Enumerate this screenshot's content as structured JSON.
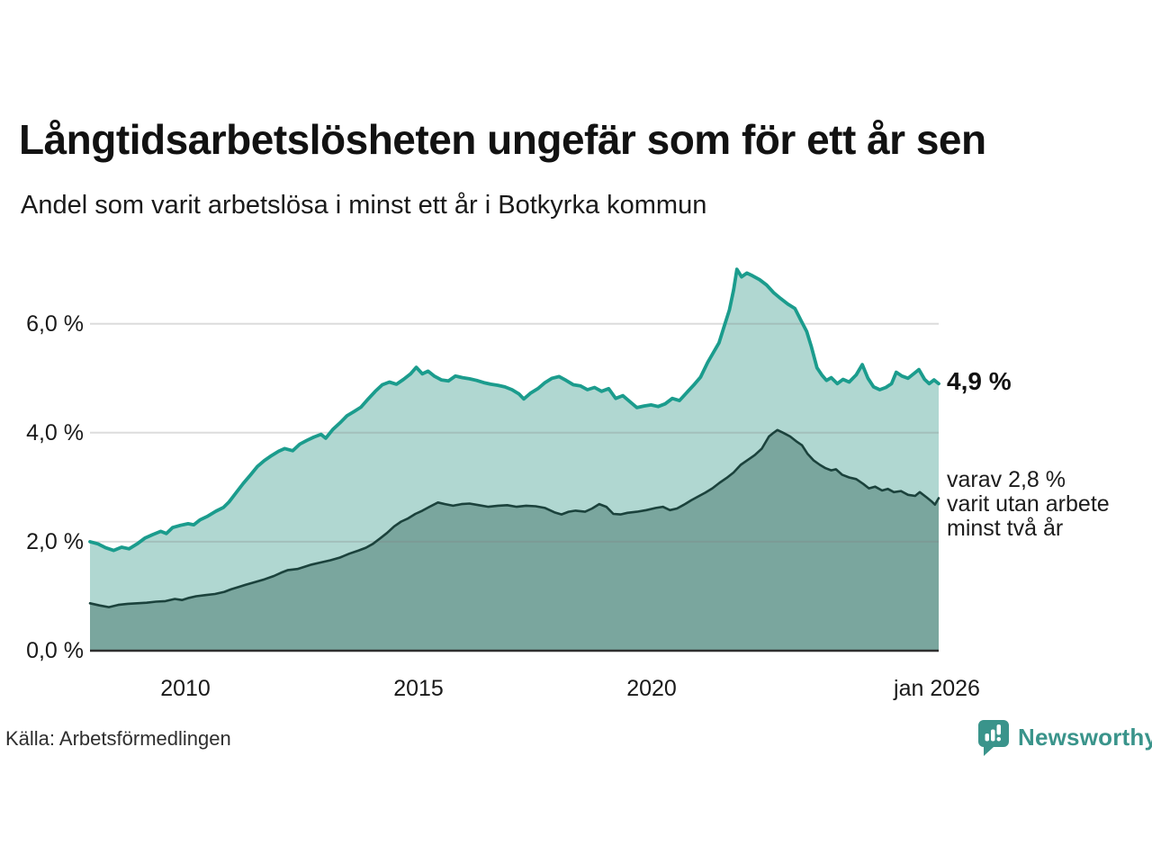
{
  "header": {
    "title": "Långtidsarbetslösheten ungefär som för ett år sen",
    "subtitle": "Andel som varit arbetslösa i minst ett år i Botkyrka kommun"
  },
  "source": {
    "label": "Källa: Arbetsförmedlingen"
  },
  "branding": {
    "name": "Newsworthy",
    "color": "#3a948b"
  },
  "chart_data": {
    "type": "area",
    "unit": "%",
    "grid": "horizontal",
    "x_domain": [
      2008.0,
      2026.0
    ],
    "ylim": [
      0,
      7.2
    ],
    "y_ticks": [
      {
        "label": "6,0 %",
        "value": 6
      },
      {
        "label": "4,0 %",
        "value": 4
      },
      {
        "label": "2,0 %",
        "value": 2
      },
      {
        "label": "0,0 %",
        "value": 0
      }
    ],
    "x_ticks": [
      {
        "label": "2010",
        "year": 2010
      },
      {
        "label": "2015",
        "year": 2015
      },
      {
        "label": "2020",
        "year": 2020
      },
      {
        "label": "jan 2026",
        "year": 2026.0
      }
    ],
    "annotations": {
      "latest_total": "4,9 %",
      "note_lines": [
        "varav 2,8 %",
        "varit utan arbete",
        "minst två år"
      ]
    },
    "colors": {
      "total_line": "#1b9c8d",
      "total_fill": "#b0d7d1",
      "two_year_line": "#1b423c",
      "two_year_fill": "#7aa69e",
      "gridline": "#dcdcdc",
      "axis": "#2f2f2f"
    },
    "series": [
      {
        "name": "arbetslösa minst ett år",
        "latest_value": 4.9,
        "points": [
          [
            2008.0,
            2.0
          ],
          [
            2008.17,
            1.96
          ],
          [
            2008.33,
            1.89
          ],
          [
            2008.5,
            1.84
          ],
          [
            2008.67,
            1.9
          ],
          [
            2008.83,
            1.87
          ],
          [
            2009.0,
            1.96
          ],
          [
            2009.17,
            2.07
          ],
          [
            2009.33,
            2.13
          ],
          [
            2009.5,
            2.19
          ],
          [
            2009.62,
            2.15
          ],
          [
            2009.75,
            2.26
          ],
          [
            2009.92,
            2.3
          ],
          [
            2010.08,
            2.33
          ],
          [
            2010.2,
            2.31
          ],
          [
            2010.33,
            2.4
          ],
          [
            2010.5,
            2.47
          ],
          [
            2010.67,
            2.56
          ],
          [
            2010.83,
            2.63
          ],
          [
            2010.95,
            2.73
          ],
          [
            2011.1,
            2.9
          ],
          [
            2011.25,
            3.07
          ],
          [
            2011.4,
            3.22
          ],
          [
            2011.55,
            3.38
          ],
          [
            2011.7,
            3.49
          ],
          [
            2011.85,
            3.58
          ],
          [
            2012.0,
            3.66
          ],
          [
            2012.13,
            3.71
          ],
          [
            2012.3,
            3.67
          ],
          [
            2012.45,
            3.79
          ],
          [
            2012.6,
            3.86
          ],
          [
            2012.75,
            3.92
          ],
          [
            2012.9,
            3.97
          ],
          [
            2013.0,
            3.9
          ],
          [
            2013.15,
            4.06
          ],
          [
            2013.3,
            4.18
          ],
          [
            2013.45,
            4.31
          ],
          [
            2013.6,
            4.39
          ],
          [
            2013.75,
            4.47
          ],
          [
            2013.9,
            4.62
          ],
          [
            2014.05,
            4.76
          ],
          [
            2014.2,
            4.88
          ],
          [
            2014.35,
            4.93
          ],
          [
            2014.5,
            4.89
          ],
          [
            2014.65,
            4.98
          ],
          [
            2014.8,
            5.08
          ],
          [
            2014.92,
            5.2
          ],
          [
            2015.05,
            5.08
          ],
          [
            2015.17,
            5.13
          ],
          [
            2015.3,
            5.04
          ],
          [
            2015.45,
            4.97
          ],
          [
            2015.6,
            4.95
          ],
          [
            2015.75,
            5.04
          ],
          [
            2015.9,
            5.01
          ],
          [
            2016.05,
            4.99
          ],
          [
            2016.2,
            4.96
          ],
          [
            2016.35,
            4.92
          ],
          [
            2016.5,
            4.89
          ],
          [
            2016.65,
            4.87
          ],
          [
            2016.8,
            4.84
          ],
          [
            2016.95,
            4.79
          ],
          [
            2017.1,
            4.71
          ],
          [
            2017.2,
            4.62
          ],
          [
            2017.35,
            4.73
          ],
          [
            2017.5,
            4.81
          ],
          [
            2017.65,
            4.92
          ],
          [
            2017.8,
            5.0
          ],
          [
            2017.95,
            5.03
          ],
          [
            2018.1,
            4.96
          ],
          [
            2018.25,
            4.88
          ],
          [
            2018.4,
            4.86
          ],
          [
            2018.55,
            4.79
          ],
          [
            2018.7,
            4.83
          ],
          [
            2018.85,
            4.76
          ],
          [
            2019.0,
            4.81
          ],
          [
            2019.15,
            4.63
          ],
          [
            2019.3,
            4.68
          ],
          [
            2019.45,
            4.57
          ],
          [
            2019.6,
            4.46
          ],
          [
            2019.75,
            4.49
          ],
          [
            2019.9,
            4.51
          ],
          [
            2020.05,
            4.48
          ],
          [
            2020.2,
            4.53
          ],
          [
            2020.35,
            4.63
          ],
          [
            2020.5,
            4.59
          ],
          [
            2020.65,
            4.73
          ],
          [
            2020.8,
            4.87
          ],
          [
            2020.95,
            5.02
          ],
          [
            2021.1,
            5.29
          ],
          [
            2021.22,
            5.47
          ],
          [
            2021.34,
            5.65
          ],
          [
            2021.45,
            5.95
          ],
          [
            2021.56,
            6.25
          ],
          [
            2021.65,
            6.62
          ],
          [
            2021.72,
            7.0
          ],
          [
            2021.82,
            6.86
          ],
          [
            2021.93,
            6.93
          ],
          [
            2022.05,
            6.88
          ],
          [
            2022.2,
            6.81
          ],
          [
            2022.35,
            6.71
          ],
          [
            2022.5,
            6.57
          ],
          [
            2022.65,
            6.46
          ],
          [
            2022.8,
            6.36
          ],
          [
            2022.95,
            6.28
          ],
          [
            2023.08,
            6.06
          ],
          [
            2023.2,
            5.86
          ],
          [
            2023.3,
            5.58
          ],
          [
            2023.42,
            5.19
          ],
          [
            2023.52,
            5.06
          ],
          [
            2023.62,
            4.96
          ],
          [
            2023.72,
            5.01
          ],
          [
            2023.85,
            4.9
          ],
          [
            2023.97,
            4.98
          ],
          [
            2024.1,
            4.93
          ],
          [
            2024.25,
            5.06
          ],
          [
            2024.38,
            5.25
          ],
          [
            2024.5,
            5.0
          ],
          [
            2024.62,
            4.84
          ],
          [
            2024.75,
            4.79
          ],
          [
            2024.88,
            4.83
          ],
          [
            2025.0,
            4.9
          ],
          [
            2025.1,
            5.11
          ],
          [
            2025.22,
            5.04
          ],
          [
            2025.35,
            5.0
          ],
          [
            2025.48,
            5.09
          ],
          [
            2025.58,
            5.16
          ],
          [
            2025.7,
            4.98
          ],
          [
            2025.8,
            4.9
          ],
          [
            2025.9,
            4.97
          ],
          [
            2026.0,
            4.9
          ]
        ]
      },
      {
        "name": "varav utan arbete minst två år",
        "latest_value": 2.8,
        "points": [
          [
            2008.0,
            0.87
          ],
          [
            2008.2,
            0.83
          ],
          [
            2008.4,
            0.8
          ],
          [
            2008.6,
            0.84
          ],
          [
            2008.8,
            0.86
          ],
          [
            2009.0,
            0.87
          ],
          [
            2009.2,
            0.88
          ],
          [
            2009.4,
            0.9
          ],
          [
            2009.6,
            0.91
          ],
          [
            2009.8,
            0.95
          ],
          [
            2009.95,
            0.93
          ],
          [
            2010.1,
            0.97
          ],
          [
            2010.25,
            1.0
          ],
          [
            2010.45,
            1.02
          ],
          [
            2010.65,
            1.04
          ],
          [
            2010.85,
            1.08
          ],
          [
            2011.0,
            1.13
          ],
          [
            2011.15,
            1.17
          ],
          [
            2011.3,
            1.21
          ],
          [
            2011.5,
            1.26
          ],
          [
            2011.7,
            1.31
          ],
          [
            2011.9,
            1.37
          ],
          [
            2012.05,
            1.43
          ],
          [
            2012.2,
            1.48
          ],
          [
            2012.4,
            1.5
          ],
          [
            2012.55,
            1.54
          ],
          [
            2012.7,
            1.58
          ],
          [
            2012.9,
            1.62
          ],
          [
            2013.1,
            1.66
          ],
          [
            2013.3,
            1.71
          ],
          [
            2013.5,
            1.78
          ],
          [
            2013.7,
            1.84
          ],
          [
            2013.85,
            1.89
          ],
          [
            2014.0,
            1.96
          ],
          [
            2014.15,
            2.06
          ],
          [
            2014.3,
            2.16
          ],
          [
            2014.45,
            2.28
          ],
          [
            2014.6,
            2.37
          ],
          [
            2014.75,
            2.43
          ],
          [
            2014.9,
            2.51
          ],
          [
            2015.05,
            2.57
          ],
          [
            2015.2,
            2.64
          ],
          [
            2015.38,
            2.72
          ],
          [
            2015.53,
            2.69
          ],
          [
            2015.7,
            2.66
          ],
          [
            2015.88,
            2.69
          ],
          [
            2016.05,
            2.7
          ],
          [
            2016.25,
            2.67
          ],
          [
            2016.45,
            2.64
          ],
          [
            2016.65,
            2.66
          ],
          [
            2016.85,
            2.67
          ],
          [
            2017.05,
            2.64
          ],
          [
            2017.25,
            2.66
          ],
          [
            2017.45,
            2.65
          ],
          [
            2017.65,
            2.62
          ],
          [
            2017.85,
            2.54
          ],
          [
            2018.0,
            2.5
          ],
          [
            2018.15,
            2.55
          ],
          [
            2018.3,
            2.57
          ],
          [
            2018.5,
            2.55
          ],
          [
            2018.65,
            2.61
          ],
          [
            2018.8,
            2.69
          ],
          [
            2018.95,
            2.64
          ],
          [
            2019.1,
            2.51
          ],
          [
            2019.25,
            2.5
          ],
          [
            2019.4,
            2.53
          ],
          [
            2019.6,
            2.55
          ],
          [
            2019.8,
            2.58
          ],
          [
            2020.0,
            2.62
          ],
          [
            2020.15,
            2.64
          ],
          [
            2020.3,
            2.58
          ],
          [
            2020.45,
            2.61
          ],
          [
            2020.6,
            2.68
          ],
          [
            2020.75,
            2.76
          ],
          [
            2020.9,
            2.83
          ],
          [
            2021.05,
            2.9
          ],
          [
            2021.2,
            2.98
          ],
          [
            2021.35,
            3.08
          ],
          [
            2021.5,
            3.17
          ],
          [
            2021.65,
            3.27
          ],
          [
            2021.8,
            3.41
          ],
          [
            2021.95,
            3.5
          ],
          [
            2022.1,
            3.59
          ],
          [
            2022.25,
            3.71
          ],
          [
            2022.4,
            3.93
          ],
          [
            2022.5,
            4.0
          ],
          [
            2022.58,
            4.05
          ],
          [
            2022.7,
            4.0
          ],
          [
            2022.85,
            3.93
          ],
          [
            2023.0,
            3.83
          ],
          [
            2023.1,
            3.77
          ],
          [
            2023.22,
            3.61
          ],
          [
            2023.35,
            3.49
          ],
          [
            2023.48,
            3.41
          ],
          [
            2023.6,
            3.35
          ],
          [
            2023.72,
            3.31
          ],
          [
            2023.82,
            3.33
          ],
          [
            2023.95,
            3.23
          ],
          [
            2024.1,
            3.18
          ],
          [
            2024.25,
            3.15
          ],
          [
            2024.4,
            3.06
          ],
          [
            2024.52,
            2.98
          ],
          [
            2024.65,
            3.01
          ],
          [
            2024.8,
            2.94
          ],
          [
            2024.92,
            2.97
          ],
          [
            2025.05,
            2.91
          ],
          [
            2025.2,
            2.93
          ],
          [
            2025.35,
            2.86
          ],
          [
            2025.5,
            2.84
          ],
          [
            2025.6,
            2.91
          ],
          [
            2025.75,
            2.81
          ],
          [
            2025.85,
            2.74
          ],
          [
            2025.92,
            2.68
          ],
          [
            2026.0,
            2.8
          ]
        ]
      }
    ]
  }
}
